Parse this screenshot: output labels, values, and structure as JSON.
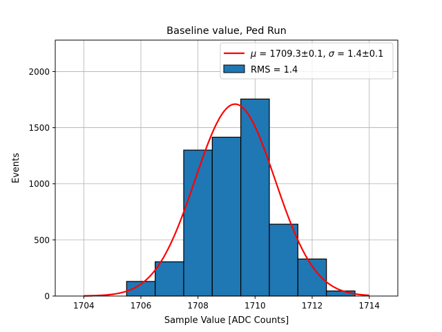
{
  "chart_data": {
    "type": "bar",
    "title": "Baseline value, Ped Run",
    "xlabel": "Sample Value [ADC Counts]",
    "ylabel": "Events",
    "xlim": [
      1703,
      1715
    ],
    "ylim": [
      0,
      2280
    ],
    "xticks": [
      1704,
      1706,
      1708,
      1710,
      1712,
      1714
    ],
    "yticks": [
      0,
      500,
      1000,
      1500,
      2000
    ],
    "grid": true,
    "legend_position": "top-right",
    "histogram": {
      "name": "RMS = 1.4",
      "color": "#1f77b4",
      "bins": [
        {
          "x0": 1703.5,
          "x1": 1704.5,
          "count": 0
        },
        {
          "x0": 1704.5,
          "x1": 1705.5,
          "count": 0
        },
        {
          "x0": 1705.5,
          "x1": 1706.5,
          "count": 130
        },
        {
          "x0": 1706.5,
          "x1": 1707.5,
          "count": 305
        },
        {
          "x0": 1707.5,
          "x1": 1708.5,
          "count": 1300
        },
        {
          "x0": 1708.5,
          "x1": 1709.5,
          "count": 1415
        },
        {
          "x0": 1709.5,
          "x1": 1710.5,
          "count": 1755
        },
        {
          "x0": 1710.5,
          "x1": 1711.5,
          "count": 640
        },
        {
          "x0": 1711.5,
          "x1": 1712.5,
          "count": 330
        },
        {
          "x0": 1712.5,
          "x1": 1713.5,
          "count": 45
        }
      ]
    },
    "fit": {
      "name": "μ = 1709.3±0.1, σ = 1.4±0.1",
      "mu_label": "μ",
      "mu_text": " = 1709.3±0.1, ",
      "sigma_label": "σ",
      "sigma_text": " = 1.4±0.1",
      "color": "#ff0000",
      "mu": 1709.3,
      "sigma": 1.4,
      "amplitude": 1710,
      "x_range": [
        1704,
        1714
      ]
    }
  }
}
